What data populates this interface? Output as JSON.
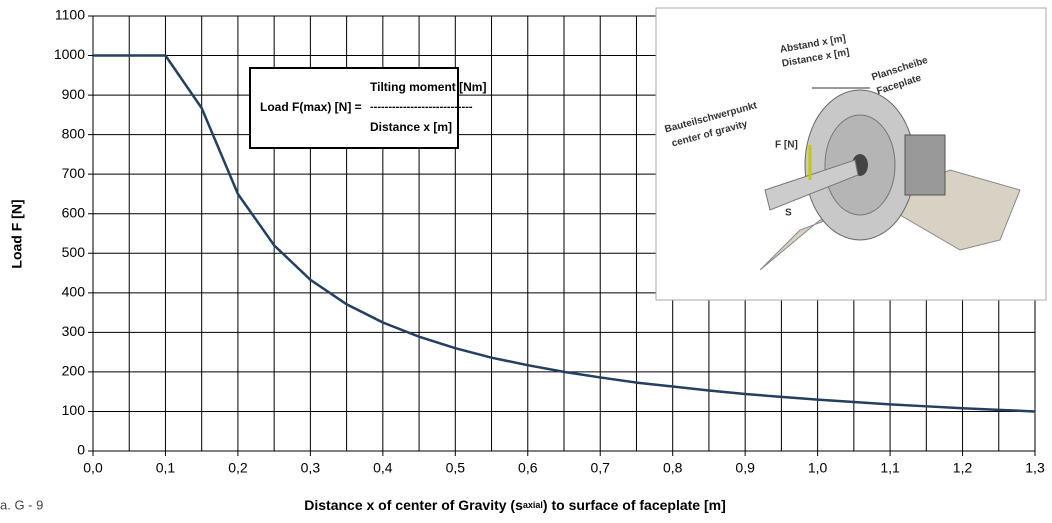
{
  "chart_data": {
    "type": "line",
    "ylabel": "Load F [N]",
    "xlabel": [
      "Distance x of center of Gravity (s",
      "axial",
      ") to surface of faceplate [m]"
    ],
    "caption": "a. G - 9",
    "x": [
      0,
      0.05,
      0.1,
      0.15,
      0.2,
      0.25,
      0.3,
      0.35,
      0.4,
      0.45,
      0.5,
      0.55,
      0.6,
      0.65,
      0.7,
      0.75,
      0.8,
      0.85,
      0.9,
      0.95,
      1.0,
      1.05,
      1.1,
      1.15,
      1.2,
      1.25,
      1.3
    ],
    "series": [
      {
        "name": "Load F",
        "color": "#243f60",
        "values": [
          1000,
          1000,
          1000,
          867,
          650,
          520,
          433,
          371,
          325,
          289,
          260,
          236,
          217,
          200,
          186,
          173,
          163,
          153,
          144,
          137,
          130,
          124,
          118,
          113,
          108,
          104,
          100
        ]
      }
    ],
    "xlim": [
      0,
      1.3
    ],
    "xticks": [
      {
        "value": 0,
        "label": "0,0"
      },
      {
        "value": 0.1,
        "label": "0,1"
      },
      {
        "value": 0.2,
        "label": "0,2"
      },
      {
        "value": 0.3,
        "label": "0,3"
      },
      {
        "value": 0.4,
        "label": "0,4"
      },
      {
        "value": 0.5,
        "label": "0,5"
      },
      {
        "value": 0.6,
        "label": "0,6"
      },
      {
        "value": 0.7,
        "label": "0,7"
      },
      {
        "value": 0.8,
        "label": "0,8"
      },
      {
        "value": 0.9,
        "label": "0,9"
      },
      {
        "value": 1.0,
        "label": "1,0"
      },
      {
        "value": 1.1,
        "label": "1,1"
      },
      {
        "value": 1.2,
        "label": "1,2"
      },
      {
        "value": 1.3,
        "label": "1,3"
      }
    ],
    "xminorticks": [
      0.05,
      0.15,
      0.25,
      0.35,
      0.45,
      0.55,
      0.65,
      0.75,
      0.85,
      0.95,
      1.05,
      1.15,
      1.25
    ],
    "ylim": [
      0,
      1100
    ],
    "yticks": [
      0,
      100,
      200,
      300,
      400,
      500,
      600,
      700,
      800,
      900,
      1000,
      1100
    ],
    "grid": true,
    "formula": {
      "lhs": "Load F(max) [N] =",
      "numerator": "Tilting moment [Nm]",
      "bar": "----------------------------",
      "denominator": "Distance x [m]"
    },
    "inset_labels": {
      "distance_de": "Abstand x [m]",
      "distance_en": "Distance x [m]",
      "faceplate_de": "Planscheibe",
      "faceplate_en": "Faceplate",
      "cog_de": "Bauteilschwerpunkt",
      "cog_en": "center of gravity",
      "force": "F [N]",
      "s": "S"
    }
  }
}
